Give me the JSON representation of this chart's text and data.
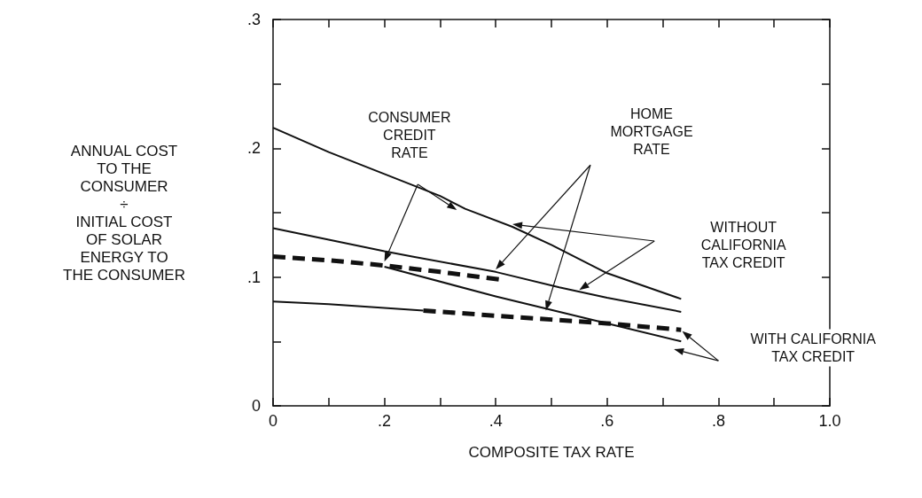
{
  "chart_data": {
    "type": "line",
    "xlabel": "COMPOSITE TAX RATE",
    "ylabel": "ANNUAL COST\nTO THE\nCONSUMER\n÷\nINITIAL COST\nOF SOLAR\nENERGY TO\nTHE CONSUMER",
    "annotations": [
      "CONSUMER\nCREDIT\nRATE",
      "HOME\nMORTGAGE\nRATE",
      "WITHOUT\nCALIFORNIA\nTAX CREDIT",
      "WITH CALIFORNIA\nTAX CREDIT"
    ],
    "series": [
      {
        "color": "#111111",
        "line_style": "solid",
        "x": [
          0,
          0.1,
          0.2,
          0.3,
          0.345,
          0.43,
          0.5,
          0.6,
          0.733
        ],
        "values": [
          0.216,
          0.197,
          0.18,
          0.163,
          0.153,
          0.139,
          0.125,
          0.103,
          0.083
        ]
      },
      {
        "color": "#111111",
        "line_style": "solid",
        "x": [
          0,
          0.1,
          0.2,
          0.25,
          0.4,
          0.514,
          0.6,
          0.733
        ],
        "values": [
          0.138,
          0.129,
          0.12,
          0.116,
          0.104,
          0.092,
          0.084,
          0.073
        ]
      },
      {
        "color": "#111111",
        "line_style": "dashed",
        "x": [
          0,
          0.1,
          0.2,
          0.3,
          0.41
        ],
        "values": [
          0.116,
          0.113,
          0.109,
          0.104,
          0.098
        ]
      },
      {
        "color": "#111111",
        "line_style": "solid",
        "x": [
          0.2,
          0.4,
          0.6,
          0.733
        ],
        "values": [
          0.108,
          0.085,
          0.064,
          0.05
        ]
      },
      {
        "color": "#111111",
        "line_style": "solid",
        "x": [
          0,
          0.1,
          0.2,
          0.27
        ],
        "values": [
          0.081,
          0.079,
          0.076,
          0.074
        ]
      },
      {
        "color": "#111111",
        "line_style": "dashed",
        "x": [
          0.27,
          0.4,
          0.5,
          0.6,
          0.733
        ],
        "values": [
          0.074,
          0.07,
          0.067,
          0.064,
          0.059
        ]
      }
    ],
    "xlim": [
      0,
      1
    ],
    "xticks": [
      {
        "value": 0,
        "label": "0"
      },
      {
        "value": 0.1,
        "label": null
      },
      {
        "value": 0.2,
        "label": ".2"
      },
      {
        "value": 0.3,
        "label": null
      },
      {
        "value": 0.4,
        "label": ".4"
      },
      {
        "value": 0.5,
        "label": null
      },
      {
        "value": 0.6,
        "label": ".6"
      },
      {
        "value": 0.7,
        "label": null
      },
      {
        "value": 0.8,
        "label": ".8"
      },
      {
        "value": 0.9,
        "label": null
      },
      {
        "value": 1,
        "label": "1.0"
      }
    ],
    "ylim": [
      0,
      0.3
    ],
    "yticks": [
      {
        "value": 0,
        "label": "0"
      },
      {
        "value": 0.05,
        "label": null
      },
      {
        "value": 0.1,
        "label": ".1"
      },
      {
        "value": 0.15,
        "label": null
      },
      {
        "value": 0.2,
        "label": ".2"
      },
      {
        "value": 0.25,
        "label": null
      },
      {
        "value": 0.3,
        "label": ".3"
      }
    ],
    "grid": false,
    "marker": "none"
  }
}
